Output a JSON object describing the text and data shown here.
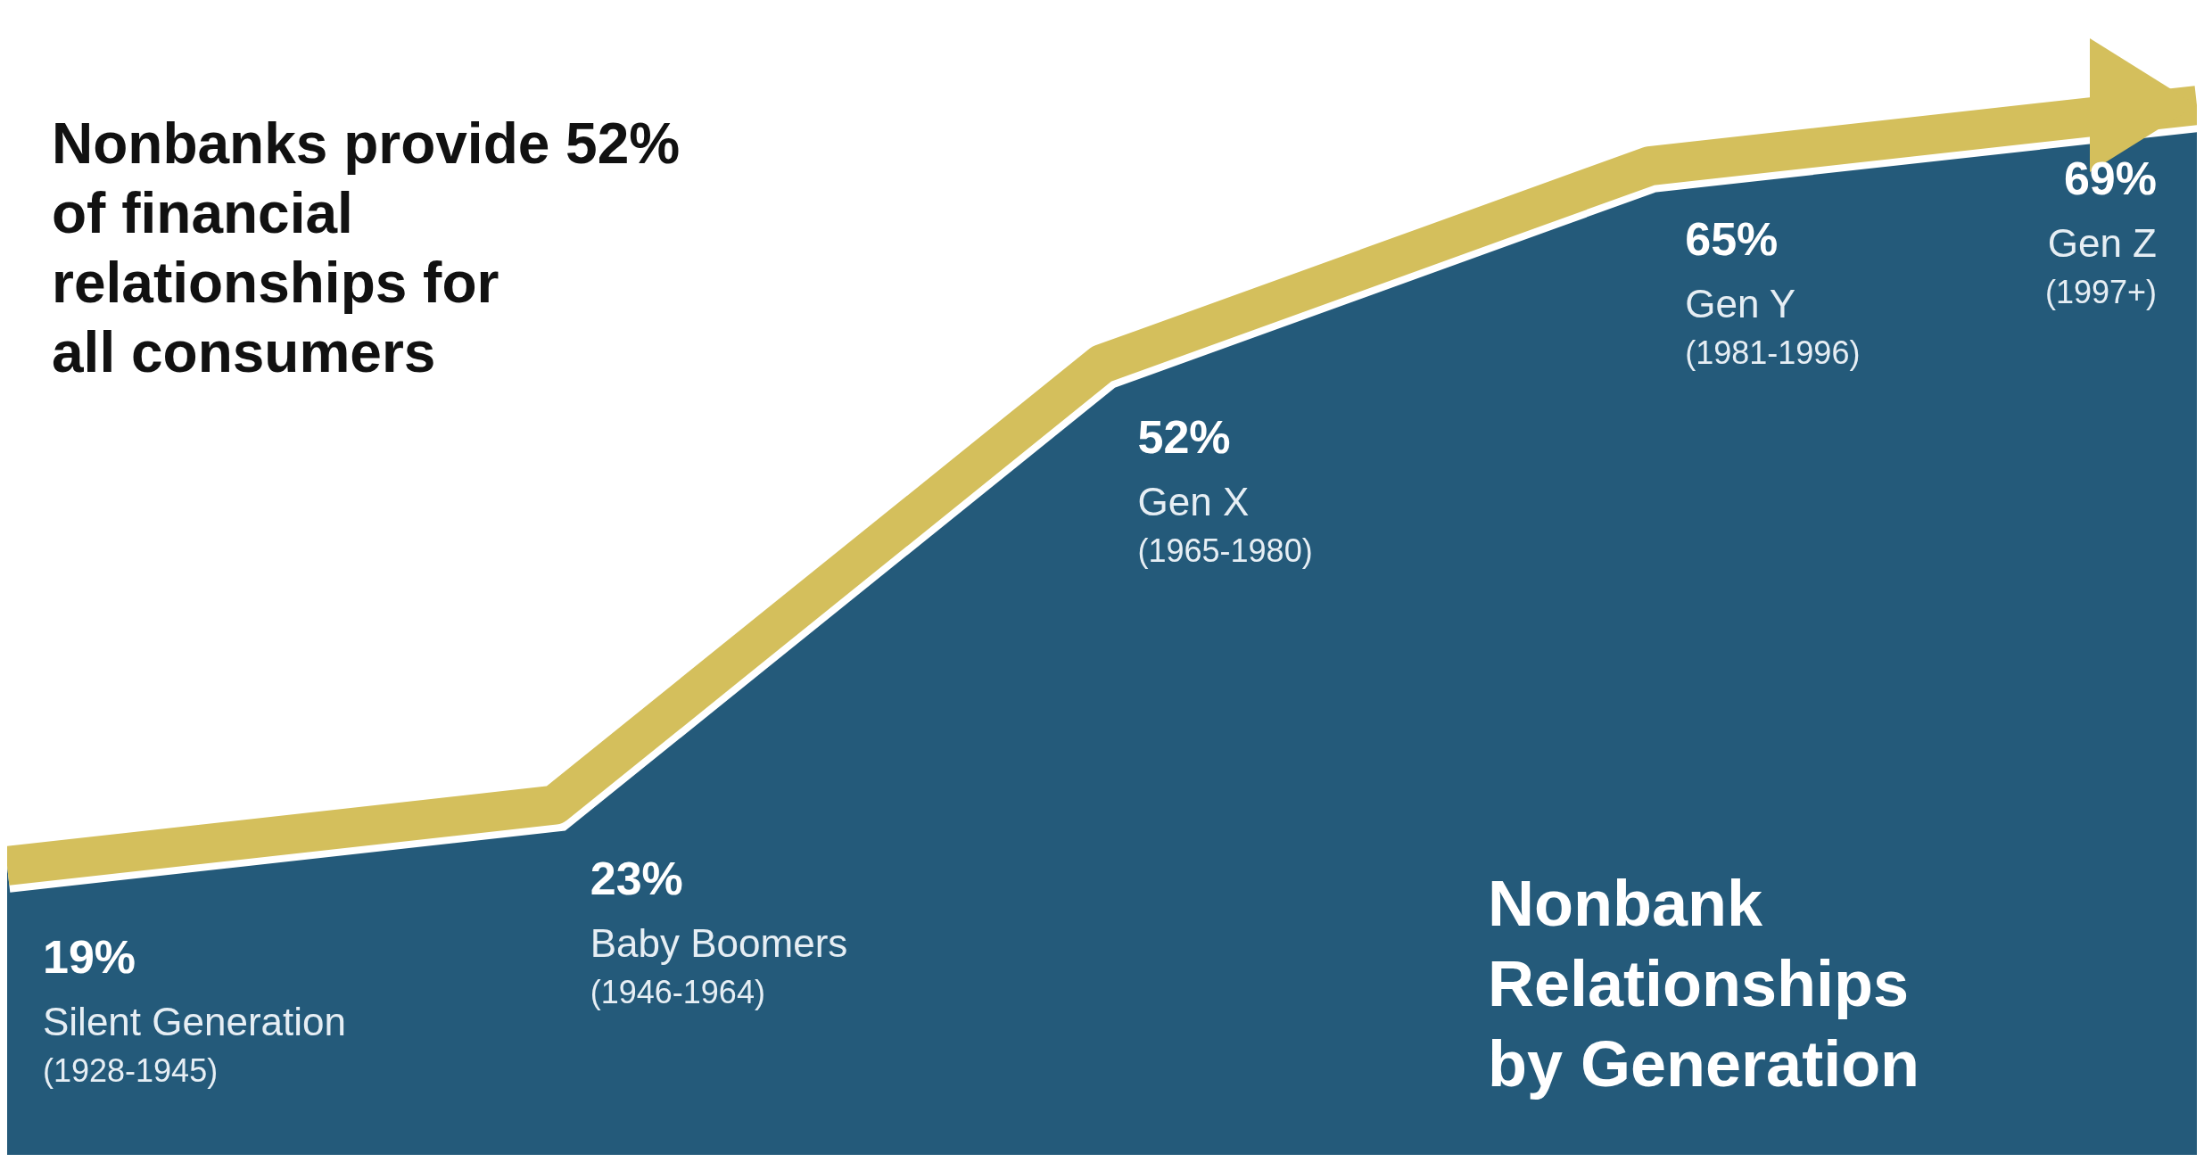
{
  "chart_data": {
    "type": "area",
    "title": "Nonbanks provide 52% of financial relationships for all consumers",
    "subtitle": "Nonbank Relationships by Generation",
    "categories": [
      "Silent Generation\n(1928-1945)",
      "Baby Boomers\n(1946-1964)",
      "Gen X\n(1965-1980)",
      "Gen Y\n(1981-1996)",
      "Gen Z\n(1997+)"
    ],
    "series": [
      {
        "color": "#245a7a",
        "values": [
          19,
          23,
          52,
          65,
          69
        ],
        "value_labels": [
          "19%",
          "23%",
          "52%",
          "65%",
          "69%"
        ]
      },
      {
        "type": "line",
        "color": "#d4bf5c",
        "values": [
          19,
          23,
          52,
          65,
          69
        ]
      }
    ],
    "grid": false,
    "legend": false
  }
}
